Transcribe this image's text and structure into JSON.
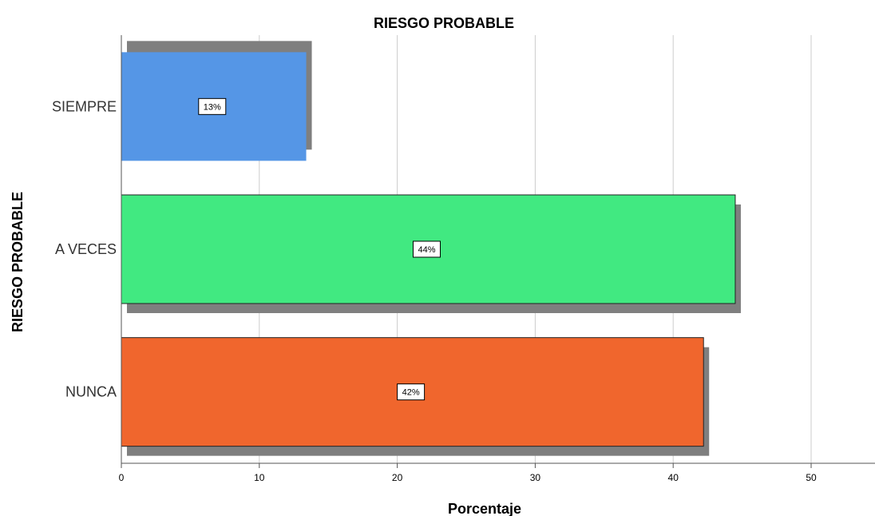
{
  "chart_data": {
    "type": "bar",
    "orientation": "horizontal",
    "title": "RIESGO PROBABLE",
    "xlabel": "Porcentaje",
    "ylabel": "RIESGO PROBABLE",
    "xlim": [
      0,
      55
    ],
    "xticks": [
      0,
      10,
      20,
      30,
      40,
      50
    ],
    "grid": "vertical",
    "categories": [
      "SIEMPRE",
      "A VECES",
      "NUNCA"
    ],
    "values": [
      13.4,
      44.5,
      42.2
    ],
    "data_labels": [
      "13%",
      "44%",
      "42%"
    ],
    "colors": [
      "#5596e6",
      "#41e981",
      "#f0662d"
    ],
    "shadow_color": "#7f7f7f"
  }
}
